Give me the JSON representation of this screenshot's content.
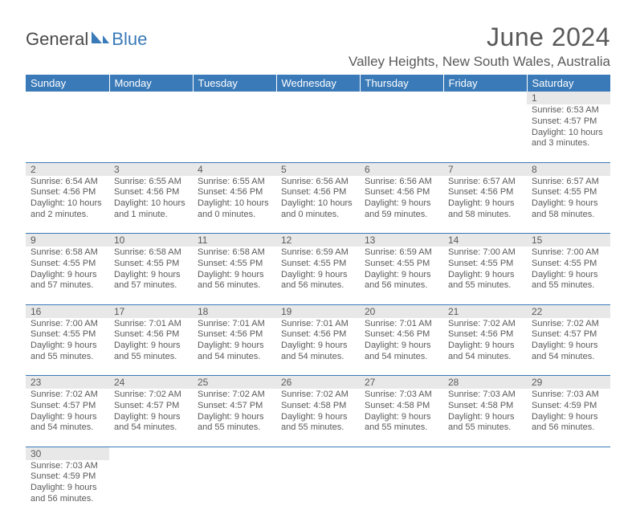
{
  "logo": {
    "general": "General",
    "blue": "Blue"
  },
  "title": "June 2024",
  "location": "Valley Heights, New South Wales, Australia",
  "header_bg": "#3a7ab8",
  "header_fg": "#ffffff",
  "daynum_bg": "#e8e8e8",
  "text_color": "#5a5a5a",
  "rule_color": "#3a7ab8",
  "columns": [
    "Sunday",
    "Monday",
    "Tuesday",
    "Wednesday",
    "Thursday",
    "Friday",
    "Saturday"
  ],
  "weeks": [
    {
      "nums": [
        "",
        "",
        "",
        "",
        "",
        "",
        "1"
      ],
      "cells": [
        null,
        null,
        null,
        null,
        null,
        null,
        {
          "sr": "6:53 AM",
          "ss": "4:57 PM",
          "dl": "10 hours and 3 minutes."
        }
      ]
    },
    {
      "nums": [
        "2",
        "3",
        "4",
        "5",
        "6",
        "7",
        "8"
      ],
      "cells": [
        {
          "sr": "6:54 AM",
          "ss": "4:56 PM",
          "dl": "10 hours and 2 minutes."
        },
        {
          "sr": "6:55 AM",
          "ss": "4:56 PM",
          "dl": "10 hours and 1 minute."
        },
        {
          "sr": "6:55 AM",
          "ss": "4:56 PM",
          "dl": "10 hours and 0 minutes."
        },
        {
          "sr": "6:56 AM",
          "ss": "4:56 PM",
          "dl": "10 hours and 0 minutes."
        },
        {
          "sr": "6:56 AM",
          "ss": "4:56 PM",
          "dl": "9 hours and 59 minutes."
        },
        {
          "sr": "6:57 AM",
          "ss": "4:56 PM",
          "dl": "9 hours and 58 minutes."
        },
        {
          "sr": "6:57 AM",
          "ss": "4:55 PM",
          "dl": "9 hours and 58 minutes."
        }
      ]
    },
    {
      "nums": [
        "9",
        "10",
        "11",
        "12",
        "13",
        "14",
        "15"
      ],
      "cells": [
        {
          "sr": "6:58 AM",
          "ss": "4:55 PM",
          "dl": "9 hours and 57 minutes."
        },
        {
          "sr": "6:58 AM",
          "ss": "4:55 PM",
          "dl": "9 hours and 57 minutes."
        },
        {
          "sr": "6:58 AM",
          "ss": "4:55 PM",
          "dl": "9 hours and 56 minutes."
        },
        {
          "sr": "6:59 AM",
          "ss": "4:55 PM",
          "dl": "9 hours and 56 minutes."
        },
        {
          "sr": "6:59 AM",
          "ss": "4:55 PM",
          "dl": "9 hours and 56 minutes."
        },
        {
          "sr": "7:00 AM",
          "ss": "4:55 PM",
          "dl": "9 hours and 55 minutes."
        },
        {
          "sr": "7:00 AM",
          "ss": "4:55 PM",
          "dl": "9 hours and 55 minutes."
        }
      ]
    },
    {
      "nums": [
        "16",
        "17",
        "18",
        "19",
        "20",
        "21",
        "22"
      ],
      "cells": [
        {
          "sr": "7:00 AM",
          "ss": "4:55 PM",
          "dl": "9 hours and 55 minutes."
        },
        {
          "sr": "7:01 AM",
          "ss": "4:56 PM",
          "dl": "9 hours and 55 minutes."
        },
        {
          "sr": "7:01 AM",
          "ss": "4:56 PM",
          "dl": "9 hours and 54 minutes."
        },
        {
          "sr": "7:01 AM",
          "ss": "4:56 PM",
          "dl": "9 hours and 54 minutes."
        },
        {
          "sr": "7:01 AM",
          "ss": "4:56 PM",
          "dl": "9 hours and 54 minutes."
        },
        {
          "sr": "7:02 AM",
          "ss": "4:56 PM",
          "dl": "9 hours and 54 minutes."
        },
        {
          "sr": "7:02 AM",
          "ss": "4:57 PM",
          "dl": "9 hours and 54 minutes."
        }
      ]
    },
    {
      "nums": [
        "23",
        "24",
        "25",
        "26",
        "27",
        "28",
        "29"
      ],
      "cells": [
        {
          "sr": "7:02 AM",
          "ss": "4:57 PM",
          "dl": "9 hours and 54 minutes."
        },
        {
          "sr": "7:02 AM",
          "ss": "4:57 PM",
          "dl": "9 hours and 54 minutes."
        },
        {
          "sr": "7:02 AM",
          "ss": "4:57 PM",
          "dl": "9 hours and 55 minutes."
        },
        {
          "sr": "7:02 AM",
          "ss": "4:58 PM",
          "dl": "9 hours and 55 minutes."
        },
        {
          "sr": "7:03 AM",
          "ss": "4:58 PM",
          "dl": "9 hours and 55 minutes."
        },
        {
          "sr": "7:03 AM",
          "ss": "4:58 PM",
          "dl": "9 hours and 55 minutes."
        },
        {
          "sr": "7:03 AM",
          "ss": "4:59 PM",
          "dl": "9 hours and 56 minutes."
        }
      ]
    },
    {
      "nums": [
        "30",
        "",
        "",
        "",
        "",
        "",
        ""
      ],
      "cells": [
        {
          "sr": "7:03 AM",
          "ss": "4:59 PM",
          "dl": "9 hours and 56 minutes."
        },
        null,
        null,
        null,
        null,
        null,
        null
      ]
    }
  ],
  "labels": {
    "sunrise": "Sunrise:",
    "sunset": "Sunset:",
    "daylight": "Daylight:"
  }
}
